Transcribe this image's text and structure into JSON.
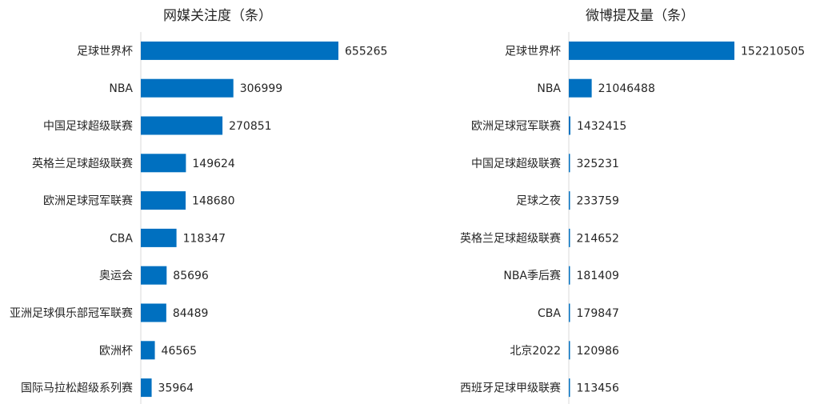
{
  "chart_data": [
    {
      "type": "bar",
      "orientation": "horizontal",
      "title": "网媒关注度（条）",
      "categories": [
        "足球世界杯",
        "NBA",
        "中国足球超级联赛",
        "英格兰足球超级联赛",
        "欧洲足球冠军联赛",
        "CBA",
        "奥运会",
        "亚洲足球俱乐部冠军联赛",
        "欧洲杯",
        "国际马拉松超级系列赛"
      ],
      "values": [
        655265,
        306999,
        270851,
        149624,
        148680,
        118347,
        85696,
        84489,
        46565,
        35964
      ],
      "data_labels": [
        "655265",
        "306999",
        "270851",
        "149624",
        "148680",
        "118347",
        "85696",
        "84489",
        "46565",
        "35964"
      ],
      "xlim": [
        0,
        655265
      ],
      "grid": false,
      "color": "#0070c0"
    },
    {
      "type": "bar",
      "orientation": "horizontal",
      "title": "微博提及量（条）",
      "categories": [
        "足球世界杯",
        "NBA",
        "欧洲足球冠军联赛",
        "中国足球超级联赛",
        "足球之夜",
        "英格兰足球超级联赛",
        "NBA季后赛",
        "CBA",
        "北京2022",
        "西班牙足球甲级联赛"
      ],
      "values": [
        152210505,
        21046488,
        1432415,
        325231,
        233759,
        214652,
        181409,
        179847,
        120986,
        113456
      ],
      "data_labels": [
        "152210505",
        "21046488",
        "1432415",
        "325231",
        "233759",
        "214652",
        "181409",
        "179847",
        "120986",
        "113456"
      ],
      "xlim": [
        0,
        152210505
      ],
      "grid": false,
      "color": "#0070c0"
    }
  ]
}
